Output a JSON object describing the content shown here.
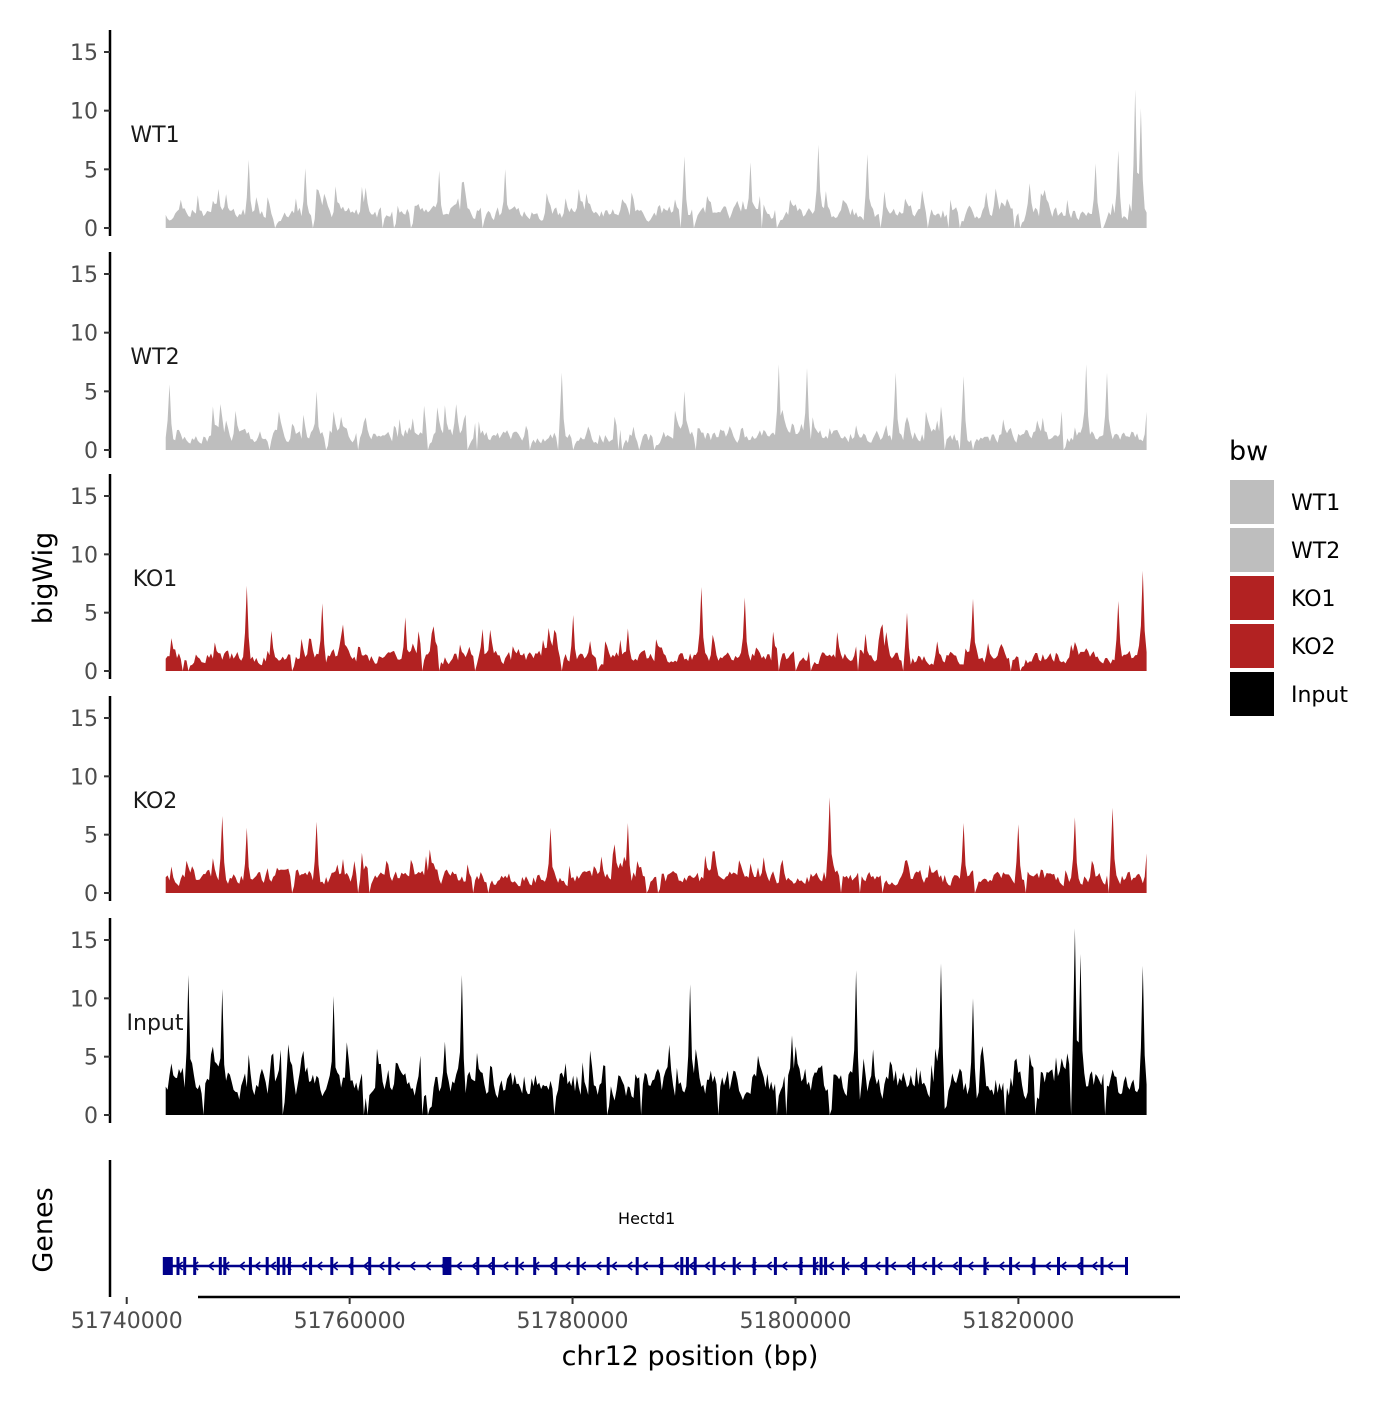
{
  "chart_data": {
    "type": "area",
    "ylabel": "bigWig",
    "genes_label": "Genes",
    "xlabel": "chr12 position (bp)",
    "xlim": [
      51738500,
      51834500
    ],
    "region": [
      51743500,
      51831500
    ],
    "ylim": [
      0,
      16
    ],
    "yticks": [
      0,
      5,
      10,
      15
    ],
    "ytick_labels": [
      "0",
      "5",
      "10",
      "15"
    ],
    "xticks": [
      51740000,
      51760000,
      51780000,
      51800000,
      51820000
    ],
    "xtick_labels": [
      "51740000",
      "51760000",
      "51780000",
      "51800000",
      "51820000"
    ],
    "legend": {
      "title": "bw",
      "entries": [
        {
          "label": "WT1",
          "color": "#bebebe"
        },
        {
          "label": "WT2",
          "color": "#bebebe"
        },
        {
          "label": "KO1",
          "color": "#b22222"
        },
        {
          "label": "KO2",
          "color": "#b22222"
        },
        {
          "label": "Input",
          "color": "#000000"
        }
      ]
    },
    "series": [
      {
        "name": "WT1",
        "color": "#bebebe",
        "base": 1.5,
        "peak": 4.2,
        "seed": 11,
        "spikes": [
          [
            51751000,
            5.8
          ],
          [
            51756000,
            5.1
          ],
          [
            51768000,
            4.9
          ],
          [
            51774000,
            5.0
          ],
          [
            51790000,
            6.1
          ],
          [
            51796000,
            5.6
          ],
          [
            51802000,
            7.1
          ],
          [
            51806500,
            6.3
          ],
          [
            51827000,
            5.5
          ],
          [
            51829000,
            6.6
          ],
          [
            51830500,
            11.8
          ],
          [
            51831000,
            10.2
          ]
        ]
      },
      {
        "name": "WT2",
        "color": "#bebebe",
        "base": 1.4,
        "peak": 4.2,
        "seed": 23,
        "spikes": [
          [
            51743800,
            5.6
          ],
          [
            51757000,
            5.0
          ],
          [
            51779000,
            6.6
          ],
          [
            51790000,
            5.0
          ],
          [
            51798500,
            7.3
          ],
          [
            51801000,
            7.0
          ],
          [
            51809000,
            6.6
          ],
          [
            51815000,
            6.3
          ],
          [
            51826000,
            7.3
          ],
          [
            51828000,
            6.6
          ]
        ]
      },
      {
        "name": "KO1",
        "color": "#b22222",
        "base": 1.4,
        "peak": 4.0,
        "seed": 37,
        "spikes": [
          [
            51750800,
            7.3
          ],
          [
            51757500,
            5.8
          ],
          [
            51765000,
            4.6
          ],
          [
            51772000,
            3.6
          ],
          [
            51780000,
            4.8
          ],
          [
            51791500,
            7.2
          ],
          [
            51795500,
            6.3
          ],
          [
            51810000,
            5.0
          ],
          [
            51816000,
            6.2
          ],
          [
            51829000,
            6.0
          ],
          [
            51831200,
            8.6
          ]
        ]
      },
      {
        "name": "KO2",
        "color": "#b22222",
        "base": 1.5,
        "peak": 4.0,
        "seed": 53,
        "spikes": [
          [
            51748500,
            6.6
          ],
          [
            51750800,
            5.6
          ],
          [
            51757000,
            6.1
          ],
          [
            51778000,
            5.6
          ],
          [
            51785000,
            6.0
          ],
          [
            51803000,
            8.2
          ],
          [
            51815000,
            6.0
          ],
          [
            51820000,
            5.9
          ],
          [
            51825000,
            6.5
          ],
          [
            51828500,
            7.3
          ]
        ]
      },
      {
        "name": "Input",
        "color": "#000000",
        "base": 3.2,
        "peak": 7.0,
        "seed": 71,
        "spikes": [
          [
            51745500,
            12.0
          ],
          [
            51748500,
            10.8
          ],
          [
            51758500,
            10.2
          ],
          [
            51770000,
            12.0
          ],
          [
            51790500,
            11.2
          ],
          [
            51805500,
            12.4
          ],
          [
            51813000,
            13.0
          ],
          [
            51816000,
            10.0
          ],
          [
            51825000,
            16.0
          ],
          [
            51825600,
            13.8
          ],
          [
            51831200,
            12.8
          ]
        ]
      }
    ],
    "genes": [
      {
        "name": "Hectd1",
        "start": 51743500,
        "end": 51829800,
        "strand": "-",
        "color": "#00008b",
        "exons": [
          51743600,
          51744000,
          51744600,
          51745200,
          51746100,
          51748400,
          51748800,
          51751100,
          51752600,
          51753600,
          51754100,
          51754600,
          51756500,
          51758400,
          51760200,
          51761800,
          51763600,
          51768700,
          51769000,
          51771500,
          51772900,
          51775000,
          51776600,
          51778500,
          51780500,
          51783200,
          51785800,
          51788000,
          51789800,
          51790300,
          51791000,
          51792700,
          51794500,
          51796300,
          51798200,
          51800500,
          51801700,
          51802300,
          51802700,
          51804300,
          51806300,
          51808200,
          51810600,
          51812400,
          51814800,
          51817000,
          51819300,
          51821400,
          51823600,
          51825700,
          51827500,
          51829700
        ]
      }
    ]
  }
}
